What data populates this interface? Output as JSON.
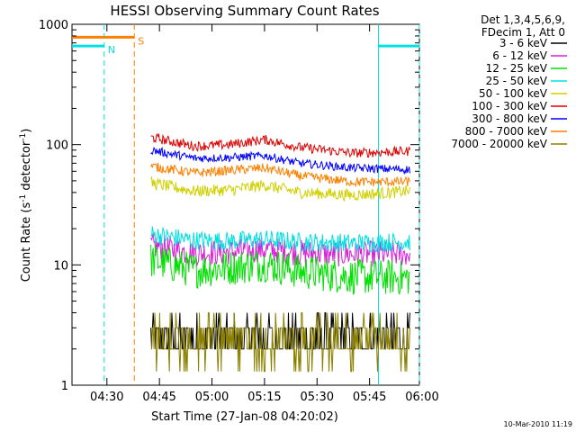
{
  "chart_data": {
    "type": "line",
    "title": "HESSI Observing Summary Count Rates",
    "xlabel": "Start Time (27-Jan-08 04:20:02)",
    "ylabel_main": "Count Rate (s",
    "ylabel_sup1": "-1",
    "ylabel_mid": " detector",
    "ylabel_sup2": "-1",
    "ylabel_end": ")",
    "yscale": "log",
    "ylim": [
      1,
      1000
    ],
    "xlim_minutes": [
      0,
      99.2
    ],
    "x_ticks": [
      {
        "label": "04:30",
        "t": 9.97
      },
      {
        "label": "04:45",
        "t": 24.97
      },
      {
        "label": "05:00",
        "t": 39.97
      },
      {
        "label": "05:15",
        "t": 54.97
      },
      {
        "label": "05:30",
        "t": 69.97
      },
      {
        "label": "05:45",
        "t": 84.97
      },
      {
        "label": "06:00",
        "t": 99.97
      }
    ],
    "y_ticks": [
      {
        "label": "1",
        "v": 1
      },
      {
        "label": "10",
        "v": 10
      },
      {
        "label": "100",
        "v": 100
      },
      {
        "label": "1000",
        "v": 1000
      }
    ],
    "legend_header": [
      "Det 1,3,4,5,6,9,",
      "FDecim 1, Att 0"
    ],
    "legend_placement": "right",
    "series": [
      {
        "name": "3 - 6 keV",
        "color": "#000000",
        "values": [
          [
            22.5,
            2.6
          ],
          [
            35,
            2.4
          ],
          [
            45,
            2.8
          ],
          [
            55,
            2.8
          ],
          [
            65,
            2.6
          ],
          [
            80,
            2.6
          ],
          [
            96.5,
            2.6
          ]
        ]
      },
      {
        "name": "6 - 12 keV",
        "color": "#d81fd8",
        "values": [
          [
            22.5,
            14.5
          ],
          [
            35,
            12.5
          ],
          [
            45,
            12.8
          ],
          [
            55,
            13.5
          ],
          [
            65,
            12.6
          ],
          [
            80,
            12.3
          ],
          [
            96.5,
            12.4
          ]
        ]
      },
      {
        "name": "12 - 25 keV",
        "color": "#00e000",
        "values": [
          [
            22.5,
            11.0
          ],
          [
            35,
            9.0
          ],
          [
            45,
            9.5
          ],
          [
            55,
            10.2
          ],
          [
            65,
            8.8
          ],
          [
            80,
            8.0
          ],
          [
            96.5,
            7.8
          ]
        ]
      },
      {
        "name": "25 - 50 keV",
        "color": "#00e0e0",
        "values": [
          [
            22.5,
            18.0
          ],
          [
            35,
            16.0
          ],
          [
            45,
            15.8
          ],
          [
            55,
            16.3
          ],
          [
            65,
            15.5
          ],
          [
            80,
            15.2
          ],
          [
            96.5,
            15.6
          ]
        ]
      },
      {
        "name": "50 - 100 keV",
        "color": "#d0d000",
        "values": [
          [
            22.5,
            48
          ],
          [
            35,
            41
          ],
          [
            45,
            42
          ],
          [
            55,
            46
          ],
          [
            65,
            40
          ],
          [
            80,
            38
          ],
          [
            96.5,
            41
          ]
        ]
      },
      {
        "name": "100 - 300 keV",
        "color": "#e00000",
        "values": [
          [
            22.5,
            115
          ],
          [
            35,
            97
          ],
          [
            45,
            100
          ],
          [
            55,
            110
          ],
          [
            65,
            95
          ],
          [
            80,
            85
          ],
          [
            96.5,
            88
          ]
        ]
      },
      {
        "name": "300 - 800 keV",
        "color": "#0000ff",
        "values": [
          [
            22.5,
            90
          ],
          [
            35,
            77
          ],
          [
            45,
            78
          ],
          [
            55,
            81
          ],
          [
            65,
            70
          ],
          [
            80,
            64
          ],
          [
            96.5,
            62
          ]
        ]
      },
      {
        "name": "800 - 7000 keV",
        "color": "#ff8000",
        "values": [
          [
            22.5,
            66
          ],
          [
            35,
            58
          ],
          [
            45,
            61
          ],
          [
            55,
            64
          ],
          [
            65,
            55
          ],
          [
            80,
            49
          ],
          [
            96.5,
            49
          ]
        ]
      },
      {
        "name": "7000 - 20000 keV",
        "color": "#8b8000",
        "values": [
          [
            22.5,
            2.7
          ],
          [
            35,
            2.2
          ],
          [
            45,
            3.0
          ],
          [
            55,
            3.8
          ],
          [
            65,
            2.0
          ],
          [
            80,
            2.4
          ],
          [
            96.5,
            2.6
          ]
        ]
      }
    ],
    "flags": [
      {
        "label": "N",
        "color": "#00e0e0",
        "segments": [
          [
            0,
            9.2
          ],
          [
            87.5,
            99.2
          ]
        ],
        "level": 660
      },
      {
        "label": "S",
        "color": "#ff8000",
        "segments": [
          [
            0,
            17.8
          ]
        ],
        "level": 780
      }
    ],
    "markers": [
      {
        "t": 9.2,
        "color": "#00e0e0",
        "style": "dashed"
      },
      {
        "t": 17.8,
        "color": "#ff8000",
        "style": "dashed"
      },
      {
        "t": 87.5,
        "color": "#00e0e0",
        "style": "solid"
      },
      {
        "t": 99.2,
        "color": "#00e0e0",
        "style": "dashed"
      }
    ],
    "data_start_t": 22.5,
    "footer_timestamp": "10-Mar-2010 11:19"
  }
}
